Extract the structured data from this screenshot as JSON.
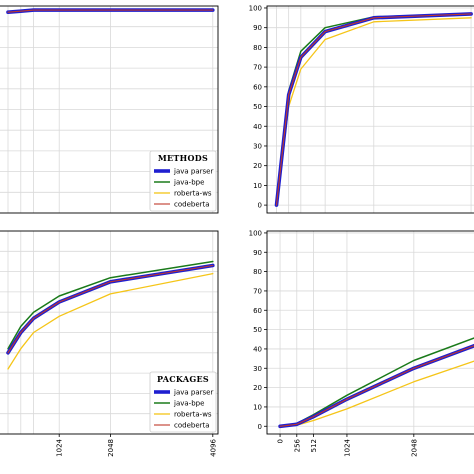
{
  "chart_data": [
    {
      "type": "line",
      "panel": "top-left",
      "x_ticks": [],
      "y_ticks": [],
      "xlim": [
        -200,
        4200
      ],
      "ylim": [
        0,
        100
      ],
      "grid": true,
      "legend": {
        "title": "METHODS",
        "placement": "bottom-right",
        "entries": [
          "java parser",
          "java-bpe",
          "roberta-ws",
          "codeberta"
        ]
      },
      "series": [
        {
          "name": "java parser",
          "color": "#1f1fd0",
          "x": [
            0,
            256,
            512,
            1024,
            2048,
            4096
          ],
          "y": [
            97,
            97.5,
            98,
            98,
            98,
            98
          ]
        },
        {
          "name": "java-bpe",
          "color": "#1a7a1a",
          "x": [
            0,
            256,
            512,
            1024,
            2048,
            4096
          ],
          "y": [
            97.3,
            97.8,
            98.2,
            98.3,
            98.3,
            98.4
          ]
        },
        {
          "name": "roberta-ws",
          "color": "#f5c518",
          "x": [
            0,
            256,
            512,
            1024,
            2048,
            4096
          ],
          "y": [
            96.8,
            97.3,
            97.7,
            97.8,
            97.8,
            97.8
          ]
        },
        {
          "name": "codeberta",
          "color": "#c0392b",
          "x": [
            0,
            256,
            512,
            1024,
            2048,
            4096
          ],
          "y": [
            97,
            97.5,
            98,
            98,
            98,
            98
          ]
        }
      ]
    },
    {
      "type": "line",
      "panel": "top-right",
      "x_ticks": [],
      "y_ticks": [
        "0",
        "10",
        "20",
        "30",
        "40",
        "50",
        "60",
        "70",
        "80",
        "90",
        "100"
      ],
      "xlim": [
        -200,
        4200
      ],
      "ylim": [
        -4,
        101
      ],
      "grid": true,
      "series": [
        {
          "name": "java parser",
          "color": "#1f1fd0",
          "x": [
            0,
            256,
            512,
            1024,
            2048,
            4096
          ],
          "y": [
            0,
            56,
            75,
            88,
            95,
            97
          ]
        },
        {
          "name": "java-bpe",
          "color": "#1a7a1a",
          "x": [
            0,
            256,
            512,
            1024,
            2048,
            4096
          ],
          "y": [
            0,
            58,
            78,
            90,
            95.5,
            97
          ]
        },
        {
          "name": "roberta-ws",
          "color": "#f5c518",
          "x": [
            0,
            256,
            512,
            1024,
            2048,
            4096
          ],
          "y": [
            0,
            50,
            69,
            84,
            93,
            95
          ]
        },
        {
          "name": "codeberta",
          "color": "#c0392b",
          "x": [
            0,
            256,
            512,
            1024,
            2048,
            4096
          ],
          "y": [
            0,
            56,
            75,
            88,
            95,
            97
          ]
        }
      ]
    },
    {
      "type": "line",
      "panel": "bottom-left",
      "x_ticks": [
        "1024",
        "2048",
        "4096"
      ],
      "y_ticks": [],
      "xlim": [
        -200,
        4200
      ],
      "ylim": [
        0,
        100
      ],
      "grid": true,
      "legend": {
        "title": "PACKAGES",
        "placement": "bottom-right",
        "entries": [
          "java parser",
          "java-bpe",
          "roberta-ws",
          "codeberta"
        ]
      },
      "series": [
        {
          "name": "java parser",
          "color": "#1f1fd0",
          "x": [
            0,
            256,
            512,
            1024,
            2048,
            4096
          ],
          "y": [
            40,
            50,
            57,
            65,
            75,
            83
          ]
        },
        {
          "name": "java-bpe",
          "color": "#1a7a1a",
          "x": [
            0,
            256,
            512,
            1024,
            2048,
            4096
          ],
          "y": [
            42,
            53,
            60,
            68,
            77,
            85
          ]
        },
        {
          "name": "roberta-ws",
          "color": "#f5c518",
          "x": [
            0,
            256,
            512,
            1024,
            2048,
            4096
          ],
          "y": [
            32,
            42,
            50,
            58,
            69,
            79
          ]
        },
        {
          "name": "codeberta",
          "color": "#c0392b",
          "x": [
            0,
            256,
            512,
            1024,
            2048,
            4096
          ],
          "y": [
            40,
            50,
            57,
            65,
            75,
            83
          ]
        }
      ]
    },
    {
      "type": "line",
      "panel": "bottom-right",
      "x_ticks": [
        "0",
        "256",
        "512",
        "1024",
        "2048"
      ],
      "y_ticks": [
        "0",
        "10",
        "20",
        "30",
        "40",
        "50",
        "60",
        "70",
        "80",
        "90",
        "100"
      ],
      "xlim": [
        -200,
        3000
      ],
      "ylim": [
        -4,
        101
      ],
      "grid": true,
      "series": [
        {
          "name": "java parser",
          "color": "#1f1fd0",
          "x": [
            0,
            256,
            512,
            1024,
            2048,
            3000
          ],
          "y": [
            0,
            1,
            5,
            14,
            30,
            42
          ]
        },
        {
          "name": "java-bpe",
          "color": "#1a7a1a",
          "x": [
            0,
            256,
            512,
            1024,
            2048,
            3000
          ],
          "y": [
            0,
            1.5,
            6,
            16,
            34,
            46
          ]
        },
        {
          "name": "roberta-ws",
          "color": "#f5c518",
          "x": [
            0,
            256,
            512,
            1024,
            2048,
            3000
          ],
          "y": [
            0,
            0.5,
            3,
            9,
            23,
            34
          ]
        },
        {
          "name": "codeberta",
          "color": "#c0392b",
          "x": [
            0,
            256,
            512,
            1024,
            2048,
            3000
          ],
          "y": [
            0,
            1,
            5,
            14,
            30,
            42
          ]
        }
      ]
    }
  ]
}
